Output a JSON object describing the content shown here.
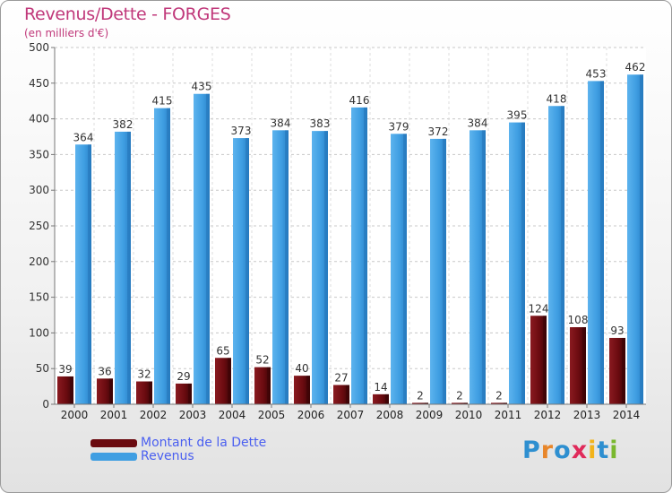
{
  "header": {
    "title": "Revenus/Dette - FORGES",
    "subtitle": "(en milliers d'€)"
  },
  "legend": {
    "items": [
      {
        "label": "Montant de la Dette",
        "color": "#6b0b10"
      },
      {
        "label": "Revenus",
        "color": "#3f9ee2"
      }
    ]
  },
  "logo": {
    "text": "Proxiti",
    "colors": [
      "#2e8fd0",
      "#e8862a",
      "#2e8fd0",
      "#e02a5a",
      "#f2b31a",
      "#2e8fd0",
      "#7ab82e"
    ]
  },
  "chart_data": {
    "type": "bar",
    "title": "Revenus/Dette - FORGES",
    "subtitle": "(en milliers d'€)",
    "categories": [
      "2000",
      "2001",
      "2002",
      "2003",
      "2004",
      "2005",
      "2006",
      "2007",
      "2008",
      "2009",
      "2010",
      "2011",
      "2012",
      "2013",
      "2014"
    ],
    "series": [
      {
        "name": "Montant de la Dette",
        "color": "#6b0b10",
        "values": [
          39,
          36,
          32,
          29,
          65,
          52,
          40,
          27,
          14,
          2,
          2,
          2,
          124,
          108,
          93
        ]
      },
      {
        "name": "Revenus",
        "color": "#3f9ee2",
        "values": [
          364,
          382,
          415,
          435,
          373,
          384,
          383,
          416,
          379,
          372,
          384,
          395,
          418,
          453,
          462
        ]
      }
    ],
    "ylim": [
      0,
      500
    ],
    "yticks": [
      0,
      50,
      100,
      150,
      200,
      250,
      300,
      350,
      400,
      450,
      500
    ],
    "grid": true,
    "legend_position": "bottom-left"
  }
}
